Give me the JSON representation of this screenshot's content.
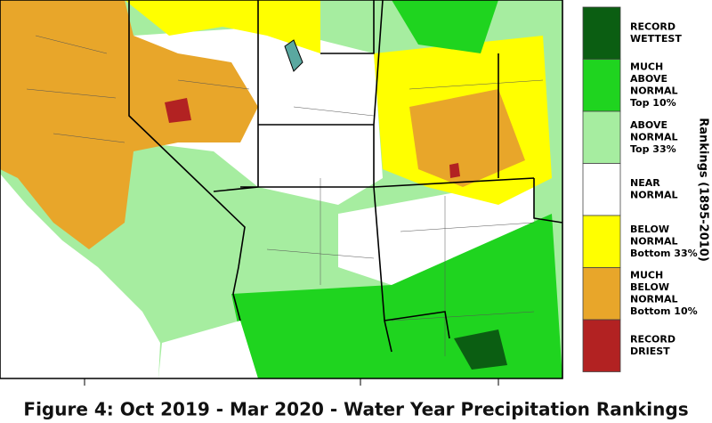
{
  "legend": {
    "title": "Rankings (1895-2010)",
    "items": [
      {
        "lines": [
          "RECORD",
          "WETTEST"
        ],
        "color": "#0b5e12"
      },
      {
        "lines": [
          "MUCH",
          "ABOVE",
          "NORMAL",
          "Top 10%"
        ],
        "color": "#1fd41f"
      },
      {
        "lines": [
          "ABOVE",
          "NORMAL",
          "Top 33%"
        ],
        "color": "#a6eda0"
      },
      {
        "lines": [
          "NEAR",
          "NORMAL"
        ],
        "color": "#ffffff"
      },
      {
        "lines": [
          "BELOW",
          "NORMAL",
          "Bottom 33%"
        ],
        "color": "#ffff00"
      },
      {
        "lines": [
          "MUCH",
          "BELOW",
          "NORMAL",
          "Bottom 10%"
        ],
        "color": "#e8a62a"
      },
      {
        "lines": [
          "RECORD",
          "DRIEST"
        ],
        "color": "#b22222"
      }
    ]
  },
  "caption": "Figure 4: Oct 2019 - Mar 2020 - Water Year Precipitation Rankings"
}
